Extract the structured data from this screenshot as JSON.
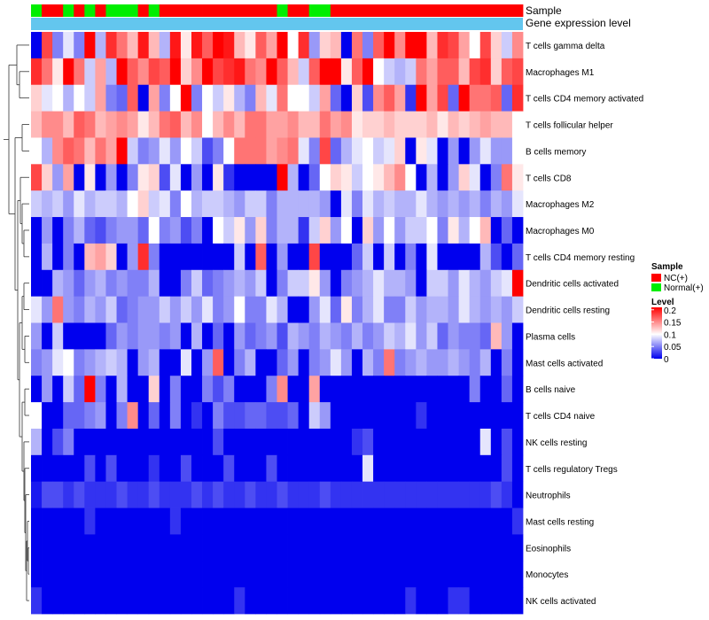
{
  "chart_data": {
    "type": "heatmap",
    "title": "",
    "annotation_tracks": [
      {
        "label": "Sample"
      },
      {
        "label": "Gene expression level"
      }
    ],
    "sample_groups": [
      "Normal(+)",
      "NC(+)",
      "NC(+)",
      "Normal(+)",
      "NC(+)",
      "Normal(+)",
      "NC(+)",
      "Normal(+)",
      "Normal(+)",
      "Normal(+)",
      "NC(+)",
      "Normal(+)",
      "NC(+)",
      "NC(+)",
      "NC(+)",
      "NC(+)",
      "NC(+)",
      "NC(+)",
      "NC(+)",
      "NC(+)",
      "NC(+)",
      "NC(+)",
      "NC(+)",
      "Normal(+)",
      "NC(+)",
      "NC(+)",
      "Normal(+)",
      "Normal(+)",
      "NC(+)",
      "NC(+)",
      "NC(+)",
      "NC(+)",
      "NC(+)",
      "NC(+)",
      "NC(+)",
      "NC(+)",
      "NC(+)",
      "NC(+)",
      "NC(+)",
      "NC(+)",
      "NC(+)",
      "NC(+)",
      "NC(+)",
      "NC(+)",
      "NC(+)",
      "NC(+)"
    ],
    "rows": [
      "T cells gamma delta",
      "Macrophages M1",
      "T cells CD4 memory activated",
      "T cells follicular helper",
      "B cells memory",
      "T cells CD8",
      "Macrophages M2",
      "Macrophages M0",
      "T cells CD4 memory resting",
      "Dendritic cells activated",
      "Dendritic cells resting",
      "Plasma cells",
      "Mast cells activated",
      "B cells naive",
      "T cells CD4 naive",
      "NK cells resting",
      "T cells regulatory  Tregs",
      "Neutrophils",
      "Mast cells resting",
      "Eosinophils",
      "Monocytes",
      "NK cells activated"
    ],
    "column_count": 46,
    "values": [
      [
        0,
        0.18,
        0.05,
        0.09,
        0.05,
        0.21,
        0.07,
        0.19,
        0.16,
        0.13,
        0.2,
        0.13,
        0.07,
        0.2,
        0.11,
        0.2,
        0.17,
        0.21,
        0.2,
        0.13,
        0.11,
        0.17,
        0.14,
        0.21,
        0.1,
        0.19,
        0.06,
        0.12,
        0.13,
        0.0,
        0.16,
        0.05,
        0.17,
        0.21,
        0.15,
        0.21,
        0.21,
        0.13,
        0.19,
        0.18,
        0.14,
        0.1,
        0.18,
        0.12,
        0.08,
        0.15
      ],
      [
        0.19,
        0.16,
        0.11,
        0.21,
        0.16,
        0.08,
        0.14,
        0.07,
        0.21,
        0.17,
        0.15,
        0.18,
        0.17,
        0.21,
        0.12,
        0.15,
        0.21,
        0.18,
        0.19,
        0.2,
        0.16,
        0.15,
        0.21,
        0.17,
        0.13,
        0.08,
        0.17,
        0.21,
        0.21,
        0.11,
        0.17,
        0.21,
        0.1,
        0.08,
        0.07,
        0.08,
        0.16,
        0.14,
        0.17,
        0.17,
        0.13,
        0.18,
        0.19,
        0.12,
        0.17,
        0.18
      ],
      [
        0.12,
        0.09,
        0.1,
        0.07,
        0.1,
        0.08,
        0.14,
        0.05,
        0.04,
        0.17,
        0.0,
        0.14,
        0.05,
        0.1,
        0.21,
        0.05,
        0.1,
        0.08,
        0.11,
        0.07,
        0.05,
        0.13,
        0.09,
        0.16,
        0.1,
        0.1,
        0.08,
        0.14,
        0.04,
        0.0,
        0.12,
        0.03,
        0.15,
        0.17,
        0.14,
        0.02,
        0.21,
        0.14,
        0.18,
        0.04,
        0.21,
        0.16,
        0.16,
        0.17,
        0.04,
        0.19
      ],
      [
        0.13,
        0.15,
        0.15,
        0.13,
        0.17,
        0.16,
        0.13,
        0.14,
        0.15,
        0.14,
        0.11,
        0.13,
        0.16,
        0.17,
        0.13,
        0.15,
        0.1,
        0.13,
        0.15,
        0.13,
        0.16,
        0.16,
        0.14,
        0.14,
        0.15,
        0.13,
        0.13,
        0.16,
        0.14,
        0.15,
        0.11,
        0.12,
        0.12,
        0.13,
        0.12,
        0.12,
        0.12,
        0.13,
        0.11,
        0.13,
        0.12,
        0.13,
        0.14,
        0.13,
        0.13,
        0.1
      ],
      [
        0.1,
        0.07,
        0.15,
        0.17,
        0.16,
        0.13,
        0.16,
        0.14,
        0.21,
        0.08,
        0.05,
        0.06,
        0.09,
        0.06,
        0.1,
        0.08,
        0.03,
        0.05,
        0.1,
        0.16,
        0.16,
        0.16,
        0.14,
        0.15,
        0.16,
        0.09,
        0.05,
        0.18,
        0.04,
        0.07,
        0.09,
        0.1,
        0.08,
        0.09,
        0.12,
        0.0,
        0.11,
        0.09,
        0.0,
        0.06,
        0.0,
        0.06,
        0.09,
        0.06,
        0.06,
        0.1
      ],
      [
        0.18,
        0.12,
        0.06,
        0.14,
        0.0,
        0.11,
        0.0,
        0.06,
        0.0,
        0.05,
        0.11,
        0.12,
        0.03,
        0.09,
        0.0,
        0.06,
        0.0,
        0.11,
        0.02,
        0.0,
        0.0,
        0.0,
        0.0,
        0.21,
        0.07,
        0.0,
        0.04,
        0.1,
        0.12,
        0.11,
        0.08,
        0.1,
        0.11,
        0.13,
        0.15,
        0.1,
        0.0,
        0.07,
        0.0,
        0.06,
        0.12,
        0.09,
        0.0,
        0.05,
        0.16,
        0.11
      ],
      [
        0.08,
        0.07,
        0.08,
        0.06,
        0.09,
        0.07,
        0.08,
        0.08,
        0.07,
        0.1,
        0.12,
        0.08,
        0.09,
        0.05,
        0.1,
        0.07,
        0.08,
        0.08,
        0.07,
        0.06,
        0.08,
        0.08,
        0.05,
        0.07,
        0.07,
        0.07,
        0.07,
        0.06,
        0.0,
        0.09,
        0.05,
        0.09,
        0.07,
        0.08,
        0.07,
        0.07,
        0.09,
        0.07,
        0.06,
        0.07,
        0.06,
        0.07,
        0.05,
        0.07,
        0.06,
        0.09
      ],
      [
        0.0,
        0.06,
        0.0,
        0.05,
        0.07,
        0.04,
        0.03,
        0.05,
        0.06,
        0.06,
        0.04,
        0.1,
        0.05,
        0.06,
        0.03,
        0.05,
        0.0,
        0.1,
        0.08,
        0.11,
        0.06,
        0.12,
        0.05,
        0.07,
        0.07,
        0.02,
        0.08,
        0.12,
        0.06,
        0.1,
        0.0,
        0.12,
        0.06,
        0.1,
        0.06,
        0.08,
        0.08,
        0.1,
        0.05,
        0.11,
        0.07,
        0.1,
        0.13,
        0.0,
        0.04,
        0.0
      ],
      [
        0.0,
        0.07,
        0.0,
        0.05,
        0.0,
        0.13,
        0.14,
        0.12,
        0.0,
        0.06,
        0.19,
        0.05,
        0.0,
        0.0,
        0.0,
        0.0,
        0.0,
        0.0,
        0.0,
        0.08,
        0.0,
        0.17,
        0.0,
        0.06,
        0.0,
        0.0,
        0.18,
        0.0,
        0.0,
        0.0,
        0.04,
        0.08,
        0.0,
        0.08,
        0.0,
        0.05,
        0.0,
        0.09,
        0.0,
        0.0,
        0.0,
        0.0,
        0.07,
        0.03,
        0.0,
        0.04
      ],
      [
        0.0,
        0.0,
        0.07,
        0.06,
        0.04,
        0.06,
        0.07,
        0.05,
        0.06,
        0.05,
        0.05,
        0.07,
        0.0,
        0.0,
        0.05,
        0.08,
        0.04,
        0.05,
        0.06,
        0.07,
        0.06,
        0.08,
        0.0,
        0.05,
        0.08,
        0.08,
        0.11,
        0.06,
        0.0,
        0.05,
        0.06,
        0.07,
        0.09,
        0.07,
        0.07,
        0.06,
        0.0,
        0.08,
        0.08,
        0.06,
        0.09,
        0.07,
        0.06,
        0.08,
        0.09,
        0.21
      ],
      [
        0.09,
        0.06,
        0.16,
        0.06,
        0.05,
        0.07,
        0.06,
        0.08,
        0.04,
        0.05,
        0.06,
        0.06,
        0.08,
        0.06,
        0.08,
        0.06,
        0.09,
        0.05,
        0.06,
        0.1,
        0.05,
        0.05,
        0.09,
        0.07,
        0.0,
        0.0,
        0.06,
        0.09,
        0.04,
        0.11,
        0.05,
        0.07,
        0.09,
        0.05,
        0.05,
        0.08,
        0.06,
        0.07,
        0.07,
        0.06,
        0.09,
        0.07,
        0.06,
        0.07,
        0.06,
        0.08
      ],
      [
        0.06,
        0.0,
        0.08,
        0.0,
        0.0,
        0.0,
        0.0,
        0.04,
        0.06,
        0.05,
        0.06,
        0.06,
        0.05,
        0.06,
        0.0,
        0.07,
        0.0,
        0.04,
        0.0,
        0.06,
        0.04,
        0.05,
        0.06,
        0.03,
        0.07,
        0.06,
        0.05,
        0.07,
        0.06,
        0.05,
        0.07,
        0.05,
        0.06,
        0.08,
        0.07,
        0.09,
        0.06,
        0.08,
        0.04,
        0.06,
        0.05,
        0.05,
        0.04,
        0.13,
        0.06,
        0.0
      ],
      [
        0.05,
        0.06,
        0.09,
        0.1,
        0.05,
        0.06,
        0.07,
        0.08,
        0.07,
        0.0,
        0.06,
        0.07,
        0.0,
        0.0,
        0.09,
        0.0,
        0.06,
        0.17,
        0.0,
        0.05,
        0.07,
        0.0,
        0.0,
        0.04,
        0.06,
        0.0,
        0.05,
        0.06,
        0.09,
        0.06,
        0.0,
        0.07,
        0.05,
        0.16,
        0.05,
        0.06,
        0.07,
        0.06,
        0.06,
        0.07,
        0.06,
        0.05,
        0.07,
        0.0,
        0.05,
        0.0
      ],
      [
        0.0,
        0.06,
        0.0,
        0.08,
        0.04,
        0.21,
        0.05,
        0.0,
        0.07,
        0.0,
        0.0,
        0.12,
        0.0,
        0.05,
        0.0,
        0.0,
        0.05,
        0.03,
        0.05,
        0.0,
        0.0,
        0.0,
        0.05,
        0.15,
        0.0,
        0.0,
        0.14,
        0.0,
        0.0,
        0.0,
        0.0,
        0.0,
        0.0,
        0.0,
        0.0,
        0.0,
        0.0,
        0.0,
        0.0,
        0.0,
        0.0,
        0.05,
        0.0,
        0.0,
        0.04,
        0.0
      ],
      [
        0.1,
        0.0,
        0.0,
        0.04,
        0.04,
        0.05,
        0.06,
        0.0,
        0.05,
        0.15,
        0.0,
        0.04,
        0.0,
        0.05,
        0.0,
        0.02,
        0.0,
        0.05,
        0.03,
        0.03,
        0.04,
        0.04,
        0.03,
        0.03,
        0.04,
        0.0,
        0.08,
        0.06,
        0.0,
        0.0,
        0.0,
        0.0,
        0.0,
        0.0,
        0.0,
        0.0,
        0.02,
        0.0,
        0.0,
        0.0,
        0.0,
        0.0,
        0.0,
        0.0,
        0.0,
        0.0
      ],
      [
        0.07,
        0.0,
        0.03,
        0.05,
        0.0,
        0.0,
        0.0,
        0.0,
        0.0,
        0.0,
        0.0,
        0.0,
        0.0,
        0.0,
        0.0,
        0.0,
        0.0,
        0.03,
        0.0,
        0.0,
        0.0,
        0.0,
        0.0,
        0.0,
        0.0,
        0.0,
        0.0,
        0.0,
        0.0,
        0.0,
        0.02,
        0.03,
        0.0,
        0.0,
        0.0,
        0.0,
        0.0,
        0.0,
        0.0,
        0.0,
        0.0,
        0.0,
        0.09,
        0.0,
        0.03,
        0.0
      ],
      [
        0.0,
        0.0,
        0.0,
        0.0,
        0.0,
        0.03,
        0.0,
        0.03,
        0.0,
        0.0,
        0.0,
        0.02,
        0.0,
        0.0,
        0.03,
        0.0,
        0.0,
        0.0,
        0.03,
        0.0,
        0.0,
        0.0,
        0.03,
        0.0,
        0.0,
        0.0,
        0.0,
        0.0,
        0.0,
        0.0,
        0.0,
        0.09,
        0.0,
        0.0,
        0.0,
        0.0,
        0.0,
        0.0,
        0.0,
        0.0,
        0.0,
        0.0,
        0.0,
        0.0,
        0.03,
        0.0
      ],
      [
        0.01,
        0.03,
        0.03,
        0.02,
        0.03,
        0.02,
        0.02,
        0.02,
        0.03,
        0.02,
        0.02,
        0.03,
        0.02,
        0.02,
        0.02,
        0.03,
        0.02,
        0.03,
        0.02,
        0.02,
        0.03,
        0.02,
        0.02,
        0.03,
        0.02,
        0.02,
        0.02,
        0.03,
        0.02,
        0.02,
        0.02,
        0.02,
        0.02,
        0.02,
        0.02,
        0.02,
        0.02,
        0.02,
        0.02,
        0.02,
        0.02,
        0.02,
        0.02,
        0.03,
        0.02,
        0.0
      ],
      [
        0.0,
        0.0,
        0.0,
        0.0,
        0.0,
        0.02,
        0.0,
        0.0,
        0.0,
        0.0,
        0.0,
        0.0,
        0.0,
        0.02,
        0.0,
        0.0,
        0.0,
        0.0,
        0.0,
        0.0,
        0.0,
        0.0,
        0.0,
        0.0,
        0.0,
        0.0,
        0.0,
        0.0,
        0.0,
        0.0,
        0.0,
        0.0,
        0.0,
        0.0,
        0.0,
        0.0,
        0.0,
        0.0,
        0.0,
        0.0,
        0.0,
        0.0,
        0.0,
        0.0,
        0.0,
        0.02
      ],
      [
        0.0,
        0.0,
        0.0,
        0.0,
        0.0,
        0.0,
        0.0,
        0.0,
        0.0,
        0.0,
        0.0,
        0.0,
        0.0,
        0.0,
        0.0,
        0.0,
        0.0,
        0.0,
        0.0,
        0.0,
        0.0,
        0.0,
        0.0,
        0.0,
        0.0,
        0.0,
        0.0,
        0.0,
        0.0,
        0.0,
        0.0,
        0.0,
        0.0,
        0.0,
        0.0,
        0.0,
        0.0,
        0.0,
        0.0,
        0.0,
        0.0,
        0.0,
        0.0,
        0.0,
        0.0,
        0.0
      ],
      [
        0.0,
        0.0,
        0.0,
        0.0,
        0.0,
        0.0,
        0.0,
        0.0,
        0.0,
        0.0,
        0.0,
        0.0,
        0.0,
        0.0,
        0.0,
        0.0,
        0.0,
        0.0,
        0.0,
        0.0,
        0.0,
        0.0,
        0.0,
        0.0,
        0.0,
        0.0,
        0.0,
        0.0,
        0.0,
        0.0,
        0.0,
        0.0,
        0.0,
        0.0,
        0.0,
        0.0,
        0.0,
        0.0,
        0.0,
        0.0,
        0.0,
        0.0,
        0.0,
        0.0,
        0.0,
        0.0
      ],
      [
        0.02,
        0.0,
        0.0,
        0.0,
        0.0,
        0.0,
        0.0,
        0.0,
        0.0,
        0.0,
        0.0,
        0.0,
        0.0,
        0.0,
        0.0,
        0.0,
        0.0,
        0.0,
        0.0,
        0.02,
        0.0,
        0.0,
        0.0,
        0.0,
        0.0,
        0.0,
        0.0,
        0.0,
        0.0,
        0.0,
        0.0,
        0.0,
        0.0,
        0.0,
        0.0,
        0.02,
        0.0,
        0.0,
        0.0,
        0.02,
        0.02,
        0.0,
        0.0,
        0.0,
        0.0,
        0.0
      ]
    ],
    "color_scale": {
      "min": 0,
      "mid": 0.1,
      "max": 0.21,
      "colors": [
        "#0000ee",
        "#ffffff",
        "#ff0000"
      ]
    },
    "legend": {
      "placement": "right",
      "sample_title": "Sample",
      "sample_entries": [
        {
          "label": "NC(+)",
          "color": "#ff0000"
        },
        {
          "label": "Normal(+)",
          "color": "#00ee00"
        }
      ],
      "level_title": "Level",
      "level_ticks": [
        {
          "value": 0.2,
          "label": "0.2"
        },
        {
          "value": 0.15,
          "label": "0.15"
        },
        {
          "value": 0.1,
          "label": "0.1"
        },
        {
          "value": 0.05,
          "label": "0.05"
        },
        {
          "value": 0,
          "label": "0"
        }
      ]
    },
    "colors": {
      "nc": "#ff0000",
      "normal": "#00ee00",
      "expression_track": "#63c6ee",
      "low": "#0000ee",
      "mid": "#ffffff",
      "high": "#ff0000"
    }
  }
}
